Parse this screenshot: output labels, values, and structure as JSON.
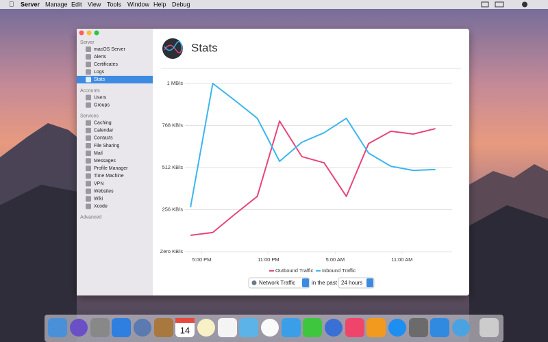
{
  "menubar": {
    "items": [
      "Server",
      "Manage",
      "Edit",
      "View",
      "Tools",
      "Window",
      "Help",
      "Debug"
    ]
  },
  "sidebar": {
    "sections": [
      {
        "title": "Server",
        "items": [
          "macOS Server",
          "Alerts",
          "Certificates",
          "Logs",
          "Stats"
        ]
      },
      {
        "title": "Accounts",
        "items": [
          "Users",
          "Groups"
        ]
      },
      {
        "title": "Services",
        "items": [
          "Caching",
          "Calendar",
          "Contacts",
          "File Sharing",
          "Mail",
          "Messages",
          "Profile Manager",
          "Time Machine",
          "VPN",
          "Websites",
          "Wiki",
          "Xcode"
        ]
      },
      {
        "title": "Advanced",
        "items": []
      }
    ],
    "selected": "Stats"
  },
  "header": {
    "title": "Stats"
  },
  "chart_data": {
    "type": "line",
    "x": [
      16,
      18,
      20,
      22,
      24,
      26,
      28,
      30,
      32,
      34,
      36,
      38
    ],
    "xlim": [
      15.5,
      39.5
    ],
    "xticks": [
      {
        "value": 17,
        "label": "5:00 PM"
      },
      {
        "value": 23,
        "label": "11:00 PM"
      },
      {
        "value": 29,
        "label": "5:00 AM"
      },
      {
        "value": 35,
        "label": "11:00 AM"
      }
    ],
    "ylim": [
      0,
      1024
    ],
    "yticks": [
      {
        "value": 0,
        "label": "Zero KB/s"
      },
      {
        "value": 256,
        "label": "256 KB/s"
      },
      {
        "value": 512,
        "label": "512 KB/s"
      },
      {
        "value": 768,
        "label": "768 KB/s"
      },
      {
        "value": 1024,
        "label": "1 MB/s"
      }
    ],
    "grid": true,
    "series": [
      {
        "name": "Outbound Traffic",
        "color": "#e8457a",
        "values": [
          100,
          117,
          229,
          337,
          795,
          579,
          541,
          337,
          658,
          733,
          716,
          749
        ]
      },
      {
        "name": "Inbound Traffic",
        "color": "#3bb5ef",
        "values": [
          271,
          1024,
          920,
          812,
          550,
          666,
          724,
          812,
          600,
          520,
          495,
          500
        ]
      }
    ]
  },
  "controls": {
    "metric": "Network Traffic",
    "joiner": "in the past",
    "period": "24 hours"
  },
  "dock": {
    "calendar_day": "14"
  }
}
